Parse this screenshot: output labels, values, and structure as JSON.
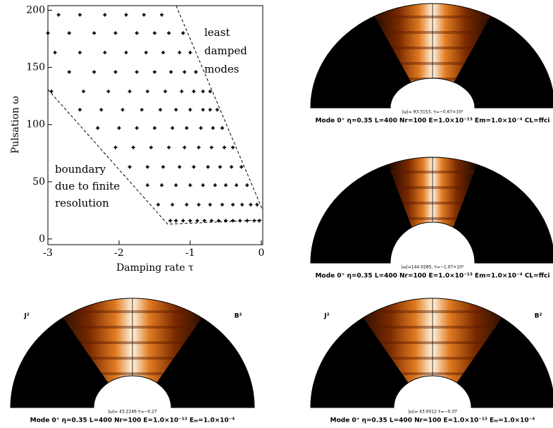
{
  "chart_data": {
    "type": "scatter",
    "x_label": "Damping rate τ",
    "y_label": "Pulsation ω",
    "xlim": [
      -3,
      0.02
    ],
    "ylim": [
      -5,
      204
    ],
    "xticks": [
      -3,
      -2,
      -1,
      0
    ],
    "yticks": [
      0,
      50,
      100,
      150,
      200
    ],
    "grid": false,
    "color": "#000000",
    "annotations": [
      "least",
      "damped",
      "modes",
      "boundary",
      "due to finite",
      "resolution"
    ],
    "x": [
      -1.28,
      -1.2,
      -1.1,
      -1.0,
      -0.9,
      -0.8,
      -0.7,
      -0.6,
      -0.5,
      -0.4,
      -0.3,
      -0.2,
      -0.1,
      -0.03,
      -1.45,
      -1.25,
      -1.05,
      -0.88,
      -0.72,
      -0.55,
      -0.4,
      -0.27,
      -0.15,
      -0.06,
      -1.6,
      -1.4,
      -1.2,
      -1.0,
      -0.82,
      -0.65,
      -0.5,
      -0.35,
      -0.2,
      -1.85,
      -1.6,
      -1.38,
      -1.15,
      -0.95,
      -0.75,
      -0.58,
      -0.42,
      -0.28,
      -2.05,
      -1.8,
      -1.55,
      -1.3,
      -1.08,
      -0.88,
      -0.7,
      -0.52,
      -0.4,
      -2.3,
      -2.0,
      -1.75,
      -1.5,
      -1.25,
      -1.05,
      -0.85,
      -0.68,
      -0.55,
      -2.55,
      -2.25,
      -1.95,
      -1.68,
      -1.42,
      -1.2,
      -1.0,
      -0.82,
      -0.72,
      -0.62,
      -2.95,
      -2.5,
      -2.15,
      -1.85,
      -1.6,
      -1.35,
      -1.12,
      -0.95,
      -0.82,
      -0.72,
      -2.7,
      -2.35,
      -2.05,
      -1.75,
      -1.5,
      -1.27,
      -1.08,
      -0.92,
      -2.9,
      -2.55,
      -2.2,
      -1.9,
      -1.62,
      -1.38,
      -1.15,
      -1.0,
      -3.0,
      -2.7,
      -2.35,
      -2.05,
      -1.75,
      -1.5,
      -1.3,
      -1.1,
      -2.85,
      -2.55,
      -2.2,
      -1.9,
      -1.65,
      -1.4
    ],
    "y": [
      16,
      16,
      16,
      16,
      16,
      16,
      16,
      16,
      16,
      16,
      16,
      16,
      16,
      16,
      30,
      30,
      30,
      30,
      30,
      30,
      30,
      30,
      30,
      30,
      47,
      47,
      47,
      47,
      47,
      47,
      47,
      47,
      47,
      63,
      63,
      63,
      63,
      63,
      63,
      63,
      63,
      63,
      80,
      80,
      80,
      80,
      80,
      80,
      80,
      80,
      80,
      97,
      97,
      97,
      97,
      97,
      97,
      97,
      97,
      97,
      113,
      113,
      113,
      113,
      113,
      113,
      113,
      113,
      113,
      113,
      129,
      129,
      129,
      129,
      129,
      129,
      129,
      129,
      129,
      129,
      146,
      146,
      146,
      146,
      146,
      146,
      146,
      146,
      163,
      163,
      163,
      163,
      163,
      163,
      163,
      163,
      180,
      180,
      180,
      180,
      180,
      180,
      180,
      180,
      196,
      196,
      196,
      196,
      196,
      196
    ]
  },
  "panels": [
    {
      "info": "|ω|= 93.3153, τ=−0.67×10⁰",
      "caption": "Mode 0⁺ η=0.35 L=400 Nr=100 E=1.0×10⁻¹³ Em=1.0×10⁻⁴ CL=ffci"
    },
    {
      "info": "|ω|=144.0285, τ=−1.07×10⁰",
      "caption": "Mode 0⁺ η=0.35 L=400 Nr=100 E=1.0×10⁻¹³ Em=1.0×10⁻⁴ CL=ffci"
    },
    {
      "info": "|ω|= 43.2246 τ=−0.27",
      "caption": "Mode 0⁺ η=0.35 L=400 Nr=100 E=1.0×10⁻¹³ Eₘ=1.0×10⁻⁴",
      "left_label": "J²",
      "right_label": "B²"
    },
    {
      "info": "|ω|= 43.0012 τ=−0.37",
      "caption": "Mode 0⁺ η=0.35 L=400 Nr=100 E=1.0×10⁻¹³ Eₘ=1.0×10⁻⁴",
      "left_label": "J²",
      "right_label": "B²"
    }
  ]
}
